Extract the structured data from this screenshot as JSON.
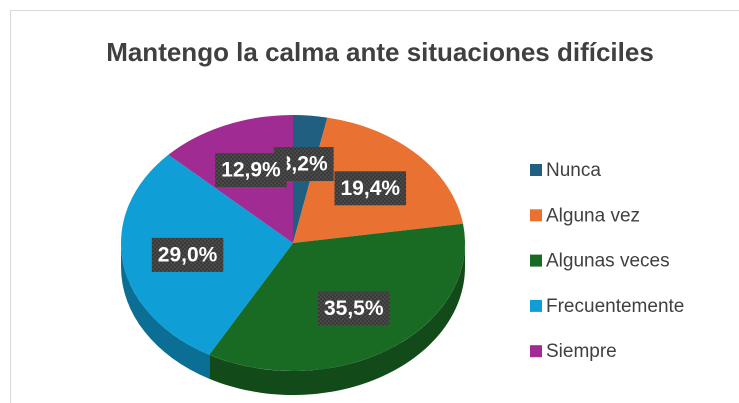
{
  "chart_data": {
    "type": "pie3d",
    "title": "Mantengo la calma ante situaciones difíciles",
    "categories": [
      "Nunca",
      "Alguna vez",
      "Algunas veces",
      "Frecuentemente",
      "Siempre"
    ],
    "values": [
      3.2,
      19.4,
      35.5,
      29.0,
      12.9
    ],
    "value_labels": [
      "3,2%",
      "19,4%",
      "35,5%",
      "29,0%",
      "12,9%"
    ],
    "colors": [
      "#215f80",
      "#e97132",
      "#196b24",
      "#0f9ed5",
      "#a02b93"
    ],
    "legend": "right"
  }
}
